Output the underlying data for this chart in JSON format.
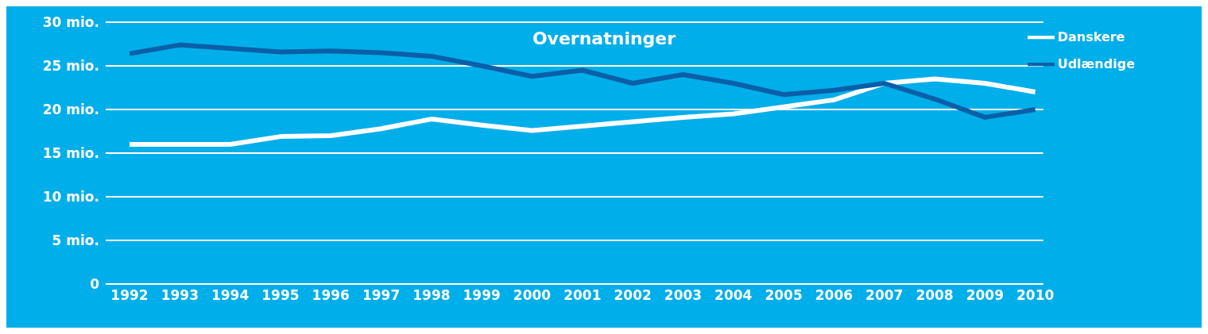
{
  "chart_data": {
    "type": "line",
    "title": "Overnatninger",
    "categories": [
      "1992",
      "1993",
      "1994",
      "1995",
      "1996",
      "1997",
      "1998",
      "1999",
      "2000",
      "2001",
      "2002",
      "2003",
      "2004",
      "2005",
      "2006",
      "2007",
      "2008",
      "2009",
      "2010"
    ],
    "series": [
      {
        "name": "Danskere",
        "color": "#ffffff",
        "values": [
          16,
          16,
          16,
          16.9,
          17,
          17.8,
          18.9,
          18.2,
          17.6,
          18.1,
          18.6,
          19.1,
          19.5,
          20.3,
          21.1,
          23,
          23.5,
          23,
          22
        ]
      },
      {
        "name": "Udlændige",
        "color": "#0a5fa8",
        "values": [
          26.4,
          27.4,
          27,
          26.6,
          26.7,
          26.5,
          26.1,
          25,
          23.8,
          24.5,
          23,
          24,
          23,
          21.7,
          22.2,
          23,
          21.2,
          19.1,
          20
        ]
      }
    ],
    "ylim": [
      0,
      30
    ],
    "yticks": [
      0,
      {
        "value": 5,
        "label": "5 mio."
      },
      {
        "value": 10,
        "label": "10 mio."
      },
      {
        "value": 15,
        "label": "15 mio."
      },
      {
        "value": 20,
        "label": "20 mio."
      },
      {
        "value": 25,
        "label": "25 mio."
      },
      {
        "value": 30,
        "label": "30 mio."
      }
    ],
    "grid": "y",
    "legend": "top right",
    "marker": "none",
    "line_style": "solid"
  }
}
